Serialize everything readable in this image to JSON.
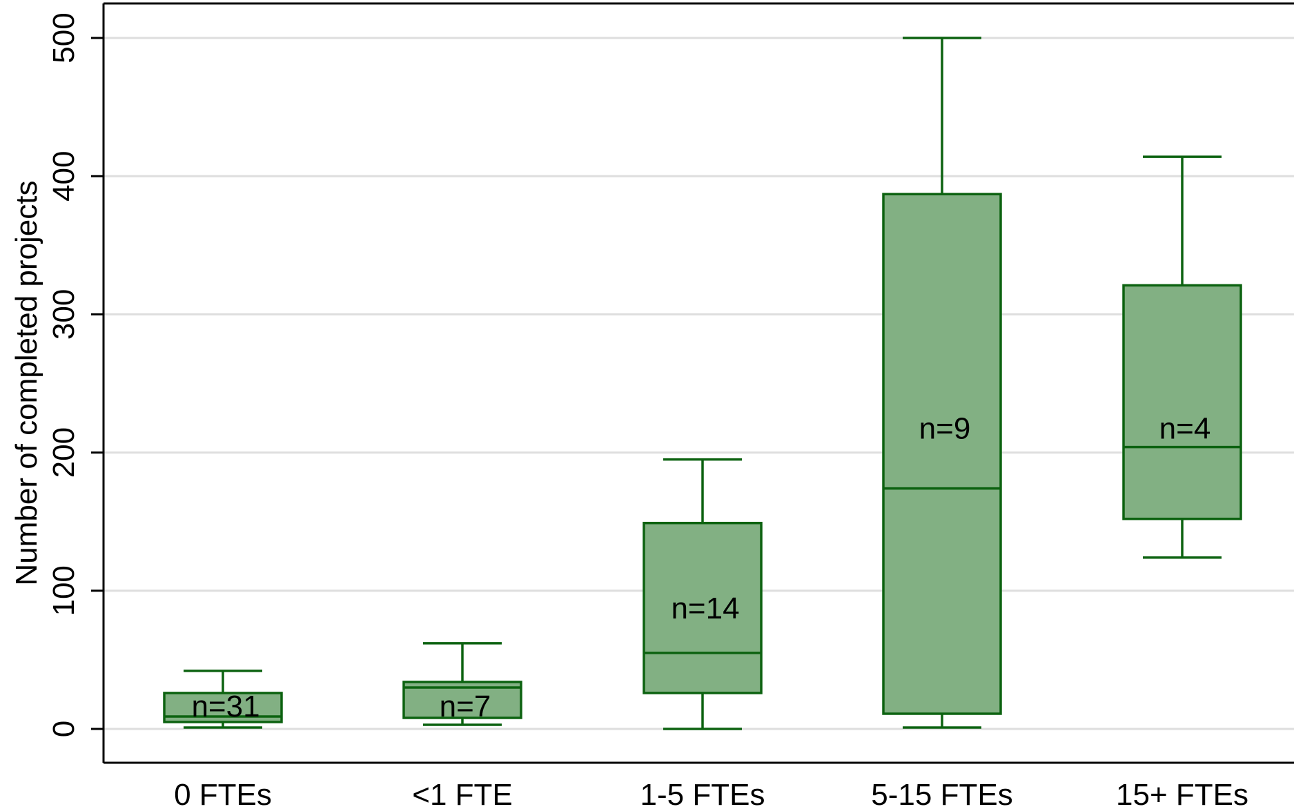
{
  "chart_data": {
    "type": "box",
    "title": "",
    "ylabel": "Number of completed projects",
    "xlabel": "",
    "ylim": [
      -25,
      525
    ],
    "yticks": [
      0,
      100,
      200,
      300,
      400,
      500
    ],
    "ytick_labels": [
      "0",
      "100",
      "200",
      "300",
      "400",
      "500"
    ],
    "grid": true,
    "legend": "none",
    "categories": [
      "0 FTEs",
      "<1 FTE",
      "1-5 FTEs",
      "5-15 FTEs",
      "15+ FTEs"
    ],
    "boxes": [
      {
        "category": "0 FTEs",
        "whisker_low": 1,
        "q1": 5,
        "median": 9,
        "q3": 26,
        "whisker_high": 42,
        "n_label": "n=31",
        "n_label_y": 17
      },
      {
        "category": "<1 FTE",
        "whisker_low": 3,
        "q1": 8,
        "median": 30,
        "q3": 34,
        "whisker_high": 62,
        "n_label": "n=7",
        "n_label_y": 17
      },
      {
        "category": "1-5 FTEs",
        "whisker_low": 0,
        "q1": 26,
        "median": 55,
        "q3": 149,
        "whisker_high": 195,
        "n_label": "n=14",
        "n_label_y": 88
      },
      {
        "category": "5-15 FTEs",
        "whisker_low": 1,
        "q1": 11,
        "median": 174,
        "q3": 387,
        "whisker_high": 500,
        "n_label": "n=9",
        "n_label_y": 218
      },
      {
        "category": "15+ FTEs",
        "whisker_low": 124,
        "q1": 152,
        "median": 204,
        "q3": 321,
        "whisker_high": 414,
        "n_label": "n=4",
        "n_label_y": 218
      }
    ],
    "colors": {
      "box_fill": "#82b083",
      "box_stroke": "#0c6210",
      "grid": "#dedede",
      "axis": "#000000"
    }
  }
}
